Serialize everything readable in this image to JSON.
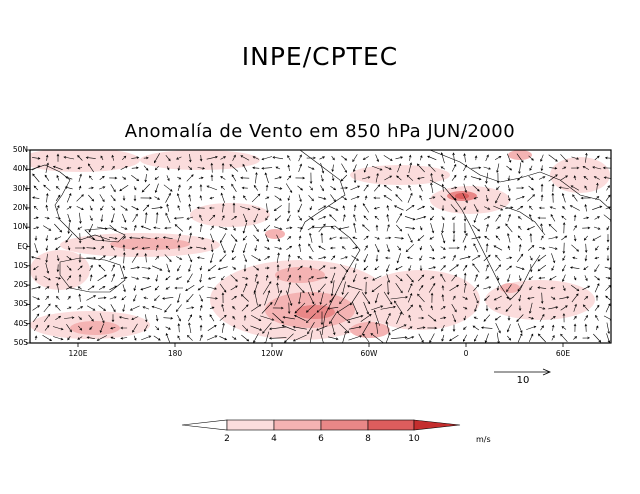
{
  "header": {
    "org_title": "INPE/CPTEC"
  },
  "map": {
    "title": "Anomalía de Vento em 850 hPa JUN/2000",
    "variable": "wind anomaly",
    "level": "850 hPa",
    "period": "JUN/2000",
    "lat_labels": [
      "50N",
      "40N",
      "30N",
      "20N",
      "10N",
      "EQ",
      "10S",
      "20S",
      "30S",
      "40S",
      "50S"
    ],
    "lon_labels": [
      "120E",
      "180",
      "120W",
      "60W",
      "0",
      "60E"
    ],
    "reference_vector": {
      "label": "10",
      "magnitude_ms": 10
    }
  },
  "colorbar": {
    "ticks": [
      "2",
      "4",
      "6",
      "8",
      "10"
    ],
    "unit": "m/s",
    "colors": [
      "#ffffff",
      "#fbdcdc",
      "#f4b3b3",
      "#e98787",
      "#dc5d5d",
      "#c42e2e"
    ]
  },
  "colors": {
    "land": "#000000",
    "arrow": "#000000",
    "background": "#ffffff"
  }
}
